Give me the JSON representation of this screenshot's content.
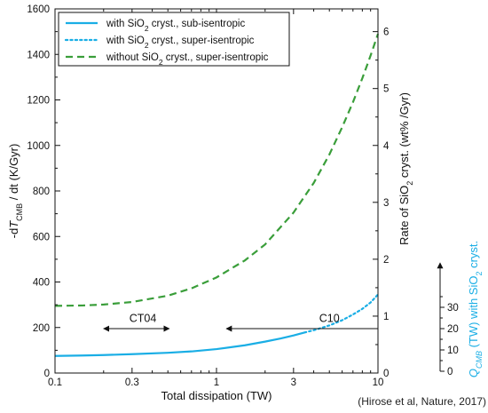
{
  "chart_data": {
    "type": "line",
    "xlabel": "Total dissipation (TW)",
    "x_scale": "log",
    "xlim": [
      0.1,
      10
    ],
    "x_ticks": [
      {
        "value": 0.1,
        "label": "0.1"
      },
      {
        "value": 0.3,
        "label": "0.3"
      },
      {
        "value": 1,
        "label": "1"
      },
      {
        "value": 3,
        "label": "3"
      },
      {
        "value": 10,
        "label": "10"
      }
    ],
    "ylabel_left_parts": [
      "-d",
      "T",
      "CMB",
      " / dt (K/Gyr)"
    ],
    "ylim_left": [
      0,
      1600
    ],
    "y_ticks_left": [
      0,
      200,
      400,
      600,
      800,
      1000,
      1200,
      1400,
      1600
    ],
    "ylabel_right_parts": [
      "Rate of SiO",
      "2",
      " cryst. (wt% /Gyr)"
    ],
    "ylim_right": [
      0,
      6.4
    ],
    "y_ticks_right": [
      0,
      1,
      2,
      3,
      4,
      5,
      6
    ],
    "ylabel_right2_parts": [
      "Q",
      "CMB",
      " (TW) with SiO",
      "2",
      " cryst."
    ],
    "y_ticks_right2": [
      0,
      10,
      20,
      30
    ],
    "series": [
      {
        "name_parts": [
          "with SiO",
          "2",
          " cryst., sub-isentropic"
        ],
        "color": "#1aaee5",
        "dash": "solid",
        "x": [
          0.1,
          0.15,
          0.2,
          0.3,
          0.5,
          0.7,
          1.0,
          1.5,
          2.0,
          2.5,
          3.0,
          3.5
        ],
        "y": [
          75,
          77,
          79,
          83,
          89,
          95,
          105,
          122,
          138,
          152,
          165,
          178
        ]
      },
      {
        "name_parts": [
          "with SiO",
          "2",
          " cryst., super-isentropic"
        ],
        "color": "#1aaee5",
        "dash": "dot",
        "x": [
          3.5,
          4.0,
          5.0,
          6.0,
          7.0,
          8.0,
          9.0,
          10.0
        ],
        "y": [
          178,
          188,
          209,
          232,
          257,
          282,
          310,
          345
        ]
      },
      {
        "name_parts": [
          "without SiO",
          "2",
          " cryst., super-isentropic"
        ],
        "color": "#3a9e3a",
        "dash": "dash",
        "x": [
          0.1,
          0.15,
          0.2,
          0.3,
          0.5,
          0.7,
          1.0,
          1.5,
          2.0,
          3.0,
          4.0,
          5.0,
          6.0,
          7.0,
          8.0,
          9.0,
          10.0
        ],
        "y": [
          295,
          297,
          301,
          312,
          340,
          372,
          420,
          495,
          565,
          705,
          835,
          960,
          1080,
          1190,
          1295,
          1395,
          1490
        ]
      }
    ],
    "annotations": [
      {
        "text": "CT04",
        "x": 0.35,
        "y": 225,
        "arrow_from": 0.2,
        "arrow_to": 0.51,
        "arrow_y": 195,
        "heads": "both"
      },
      {
        "text": "C10",
        "x": 5.0,
        "y": 225,
        "arrow_from": 10,
        "arrow_to": 1.15,
        "arrow_y": 195,
        "heads": "end"
      }
    ],
    "legend_position": "top-left",
    "credit": "(Hirose et al, Nature, 2017)"
  }
}
